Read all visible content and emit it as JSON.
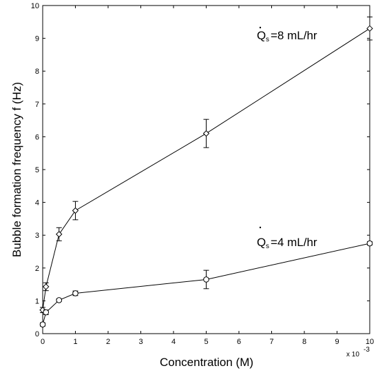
{
  "chart_data": {
    "type": "line",
    "xlabel": "Concentration (M)",
    "ylabel": "Bubble formation frequency f (Hz)",
    "x_multiplier": "x 10",
    "x_multiplier_exp": "-3",
    "xlim": [
      0,
      10
    ],
    "ylim": [
      0,
      10
    ],
    "x_ticks": [
      0,
      1,
      2,
      3,
      4,
      5,
      6,
      7,
      8,
      9,
      10
    ],
    "y_ticks": [
      0,
      1,
      2,
      3,
      4,
      5,
      6,
      7,
      8,
      9,
      10
    ],
    "grid": false,
    "series": [
      {
        "marker": "diamond",
        "x": [
          0,
          0.1,
          0.5,
          1,
          5,
          10
        ],
        "y": [
          0.72,
          1.43,
          3.03,
          3.75,
          6.1,
          9.3
        ],
        "err": [
          0.08,
          0.12,
          0.2,
          0.28,
          0.43,
          0.35
        ]
      },
      {
        "marker": "circle",
        "x": [
          0,
          0.1,
          0.5,
          1,
          5,
          10
        ],
        "y": [
          0.28,
          0.65,
          1.02,
          1.23,
          1.65,
          2.75
        ],
        "err": [
          0.05,
          0.07,
          0.04,
          0.07,
          0.28,
          0.05
        ]
      }
    ],
    "annotations": [
      {
        "text": "Q",
        "sub": "s",
        "suffix": "=8 mL/hr",
        "near_x": 6.7,
        "near_y": 9.1
      },
      {
        "text": "Q",
        "sub": "s",
        "suffix": "=4 mL/hr",
        "near_x": 6.7,
        "near_y": 2.9
      }
    ]
  }
}
